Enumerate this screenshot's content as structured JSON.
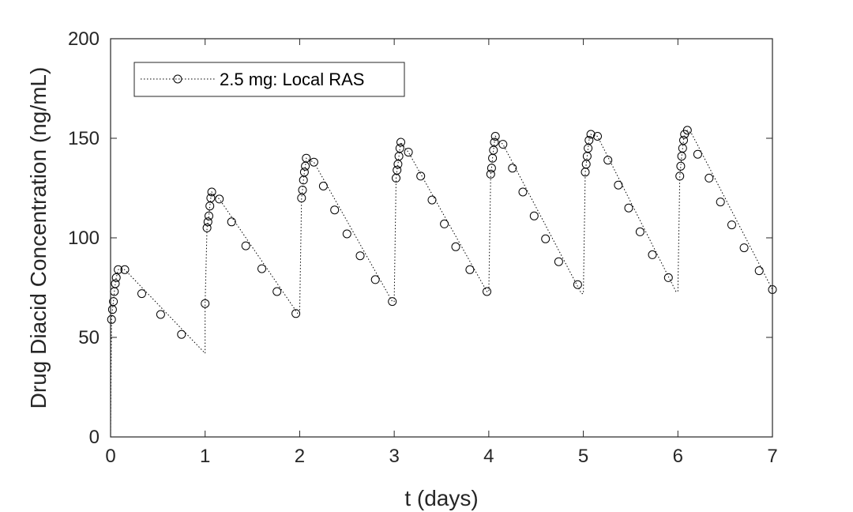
{
  "chart_data": {
    "type": "line",
    "title": "",
    "xlabel": "t (days)",
    "ylabel": "Drug Diacid Concentration (ng/mL)",
    "xlim": [
      0,
      7
    ],
    "ylim": [
      0,
      200
    ],
    "xticks": [
      0,
      1,
      2,
      3,
      4,
      5,
      6,
      7
    ],
    "yticks": [
      0,
      50,
      100,
      150,
      200
    ],
    "xtick_labels": [
      "0",
      "1",
      "2",
      "3",
      "4",
      "5",
      "6",
      "7"
    ],
    "ytick_labels": [
      "0",
      "50",
      "100",
      "150",
      "200"
    ],
    "grid": false,
    "legend_position": "top-left",
    "line_style": "dotted",
    "marker": "circle",
    "series": [
      {
        "name": "2.5 mg: Local RAS",
        "color": "#000000",
        "curve": [
          [
            0,
            0
          ],
          [
            0.01,
            59
          ],
          [
            0.02,
            64
          ],
          [
            0.03,
            68
          ],
          [
            0.04,
            73
          ],
          [
            0.05,
            77
          ],
          [
            0.06,
            80
          ],
          [
            0.08,
            84
          ],
          [
            0.1,
            84.5
          ],
          [
            0.15,
            84
          ],
          [
            1.0,
            42
          ],
          [
            1.0,
            67
          ],
          [
            1.02,
            105
          ],
          [
            1.03,
            108
          ],
          [
            1.04,
            111
          ],
          [
            1.05,
            116
          ],
          [
            1.06,
            120
          ],
          [
            1.07,
            123
          ],
          [
            1.1,
            121.5
          ],
          [
            1.15,
            119.5
          ],
          [
            1.98,
            62
          ],
          [
            2.0,
            62
          ],
          [
            2.02,
            120
          ],
          [
            2.03,
            124
          ],
          [
            2.04,
            129
          ],
          [
            2.05,
            133
          ],
          [
            2.06,
            136
          ],
          [
            2.07,
            140
          ],
          [
            2.1,
            139
          ],
          [
            2.15,
            138
          ],
          [
            2.98,
            68
          ],
          [
            3.0,
            68
          ],
          [
            3.02,
            130
          ],
          [
            3.03,
            134
          ],
          [
            3.04,
            137
          ],
          [
            3.05,
            141
          ],
          [
            3.06,
            145
          ],
          [
            3.07,
            148
          ],
          [
            3.1,
            146
          ],
          [
            3.15,
            143
          ],
          [
            3.98,
            73
          ],
          [
            4.0,
            73
          ],
          [
            4.02,
            132
          ],
          [
            4.03,
            135
          ],
          [
            4.04,
            140
          ],
          [
            4.05,
            144
          ],
          [
            4.06,
            148
          ],
          [
            4.07,
            151
          ],
          [
            4.1,
            149
          ],
          [
            4.15,
            147
          ],
          [
            4.98,
            72
          ],
          [
            5.0,
            72
          ],
          [
            5.02,
            133
          ],
          [
            5.03,
            137
          ],
          [
            5.04,
            141
          ],
          [
            5.05,
            145
          ],
          [
            5.06,
            149
          ],
          [
            5.08,
            152
          ],
          [
            5.1,
            151.5
          ],
          [
            5.15,
            151
          ],
          [
            5.98,
            73
          ],
          [
            6.0,
            73
          ],
          [
            6.02,
            131
          ],
          [
            6.03,
            136
          ],
          [
            6.04,
            141
          ],
          [
            6.05,
            145
          ],
          [
            6.06,
            149
          ],
          [
            6.07,
            152
          ],
          [
            6.1,
            154
          ],
          [
            6.15,
            152
          ],
          [
            7.0,
            74
          ]
        ],
        "points": [
          [
            0.01,
            59
          ],
          [
            0.02,
            64
          ],
          [
            0.03,
            68
          ],
          [
            0.04,
            73
          ],
          [
            0.05,
            77
          ],
          [
            0.06,
            80
          ],
          [
            0.08,
            84
          ],
          [
            0.15,
            84
          ],
          [
            0.33,
            72
          ],
          [
            0.53,
            61.5
          ],
          [
            0.75,
            51.5
          ],
          [
            1.0,
            67
          ],
          [
            1.02,
            105
          ],
          [
            1.03,
            108
          ],
          [
            1.04,
            111
          ],
          [
            1.05,
            116
          ],
          [
            1.06,
            120
          ],
          [
            1.07,
            123
          ],
          [
            1.15,
            119.5
          ],
          [
            1.28,
            108
          ],
          [
            1.43,
            96
          ],
          [
            1.6,
            84.5
          ],
          [
            1.76,
            73
          ],
          [
            1.96,
            62
          ],
          [
            2.02,
            120
          ],
          [
            2.03,
            124
          ],
          [
            2.04,
            129
          ],
          [
            2.05,
            133
          ],
          [
            2.06,
            136
          ],
          [
            2.07,
            140
          ],
          [
            2.15,
            138
          ],
          [
            2.25,
            126
          ],
          [
            2.37,
            114
          ],
          [
            2.5,
            102
          ],
          [
            2.64,
            91
          ],
          [
            2.8,
            79
          ],
          [
            2.98,
            68
          ],
          [
            3.02,
            130
          ],
          [
            3.03,
            134
          ],
          [
            3.04,
            137
          ],
          [
            3.05,
            141
          ],
          [
            3.06,
            145
          ],
          [
            3.07,
            148
          ],
          [
            3.15,
            143
          ],
          [
            3.28,
            131
          ],
          [
            3.4,
            119
          ],
          [
            3.53,
            107
          ],
          [
            3.65,
            95.5
          ],
          [
            3.8,
            84
          ],
          [
            3.98,
            73
          ],
          [
            4.02,
            132
          ],
          [
            4.03,
            135
          ],
          [
            4.04,
            140
          ],
          [
            4.05,
            144
          ],
          [
            4.06,
            148
          ],
          [
            4.07,
            151
          ],
          [
            4.15,
            147
          ],
          [
            4.25,
            135
          ],
          [
            4.36,
            123
          ],
          [
            4.48,
            111
          ],
          [
            4.6,
            99.5
          ],
          [
            4.74,
            88
          ],
          [
            4.94,
            76.5
          ],
          [
            5.02,
            133
          ],
          [
            5.03,
            137
          ],
          [
            5.04,
            141
          ],
          [
            5.05,
            145
          ],
          [
            5.06,
            149
          ],
          [
            5.08,
            152
          ],
          [
            5.15,
            151
          ],
          [
            5.26,
            139
          ],
          [
            5.37,
            126.5
          ],
          [
            5.48,
            115
          ],
          [
            5.6,
            103
          ],
          [
            5.73,
            91.5
          ],
          [
            5.9,
            80
          ],
          [
            6.02,
            131
          ],
          [
            6.03,
            136
          ],
          [
            6.04,
            141
          ],
          [
            6.05,
            145
          ],
          [
            6.06,
            149
          ],
          [
            6.07,
            152
          ],
          [
            6.1,
            154
          ],
          [
            6.21,
            142
          ],
          [
            6.33,
            130
          ],
          [
            6.45,
            118
          ],
          [
            6.57,
            106.5
          ],
          [
            6.7,
            95
          ],
          [
            6.86,
            83.5
          ],
          [
            7.0,
            74
          ]
        ]
      }
    ]
  }
}
